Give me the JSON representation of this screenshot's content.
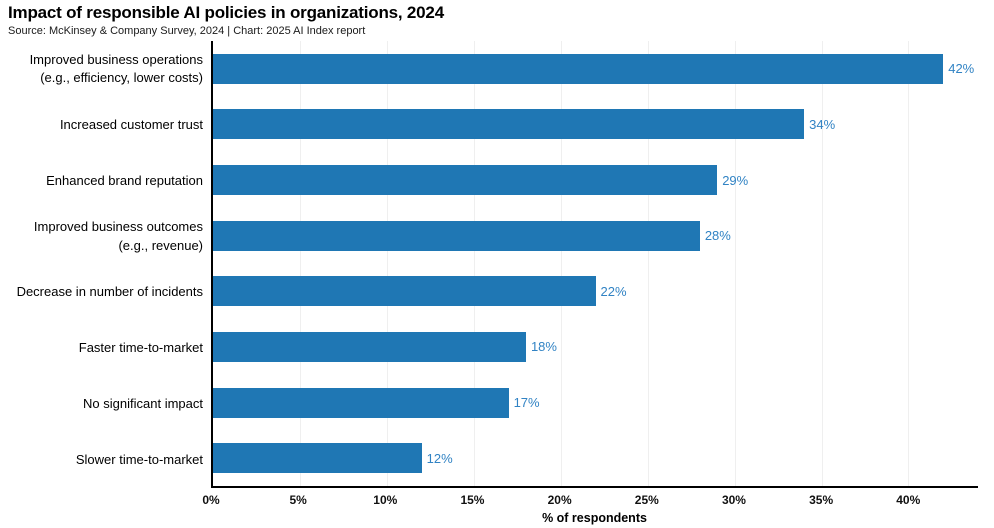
{
  "chart_data": {
    "type": "bar",
    "orientation": "horizontal",
    "title": "Impact of responsible AI policies in organizations, 2024",
    "source": "Source: McKinsey & Company Survey, 2024 | Chart: 2025 AI Index report",
    "categories": [
      "Improved business operations\n(e.g., efficiency, lower costs)",
      "Increased customer trust",
      "Enhanced brand reputation",
      "Improved business outcomes\n(e.g., revenue)",
      "Decrease in number of incidents",
      "Faster time-to-market",
      "No significant impact",
      "Slower time-to-market"
    ],
    "values": [
      42,
      34,
      29,
      28,
      22,
      18,
      17,
      12
    ],
    "value_labels": [
      "42%",
      "34%",
      "29%",
      "28%",
      "22%",
      "18%",
      "17%",
      "12%"
    ],
    "xlabel": "% of respondents",
    "x_tick_labels": [
      "0%",
      "5%",
      "10%",
      "15%",
      "20%",
      "25%",
      "30%",
      "35%",
      "40%"
    ],
    "x_tick_values": [
      0,
      5,
      10,
      15,
      20,
      25,
      30,
      35,
      40
    ],
    "xlim": [
      0,
      44
    ],
    "grid": "vertical-light",
    "legend": "none",
    "bar_color": "#1F77B4",
    "value_label_color": "#3183C4",
    "gridline_color": "#efefef",
    "spine_color": "#000000"
  }
}
